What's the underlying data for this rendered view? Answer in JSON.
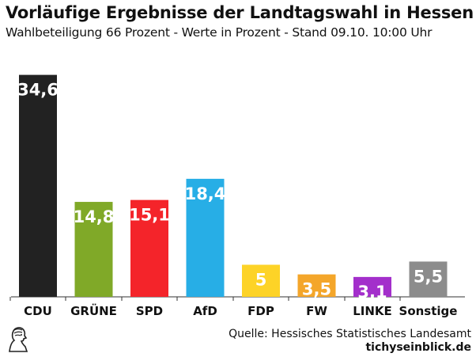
{
  "title": "Vorläufige Ergebnisse der Landtagswahl in Hessen",
  "subtitle": "Wahlbeteiligung 66 Prozent - Werte in Prozent - Stand 09.10. 10:00 Uhr",
  "source": "Quelle: Hessisches Statistisches Landesamt",
  "brand": "tichyseinblick.de",
  "logo_icon": "bust-portrait-icon",
  "chart_data": {
    "type": "bar",
    "title": "Vorläufige Ergebnisse der Landtagswahl in Hessen",
    "xlabel": "",
    "ylabel": "",
    "ylim": [
      0,
      36.4
    ],
    "grid": false,
    "categories": [
      "CDU",
      "GRÜNE",
      "SPD",
      "AfD",
      "FDP",
      "FW",
      "LINKE",
      "Sonstige"
    ],
    "values": [
      34.6,
      14.8,
      15.1,
      18.4,
      5,
      3.5,
      3.1,
      5.5
    ],
    "value_labels": [
      "34,6",
      "14,8",
      "15,1",
      "18,4",
      "5",
      "3,5",
      "3,1",
      "5,5"
    ],
    "colors": [
      "#222222",
      "#80a928",
      "#f4242a",
      "#27aee6",
      "#fdd327",
      "#f4a62a",
      "#a32fcb",
      "#8c8c8c"
    ],
    "label_colors": [
      "#ffffff",
      "#ffffff",
      "#ffffff",
      "#ffffff",
      "#ffffff",
      "#ffffff",
      "#ffffff",
      "#ffffff"
    ]
  }
}
